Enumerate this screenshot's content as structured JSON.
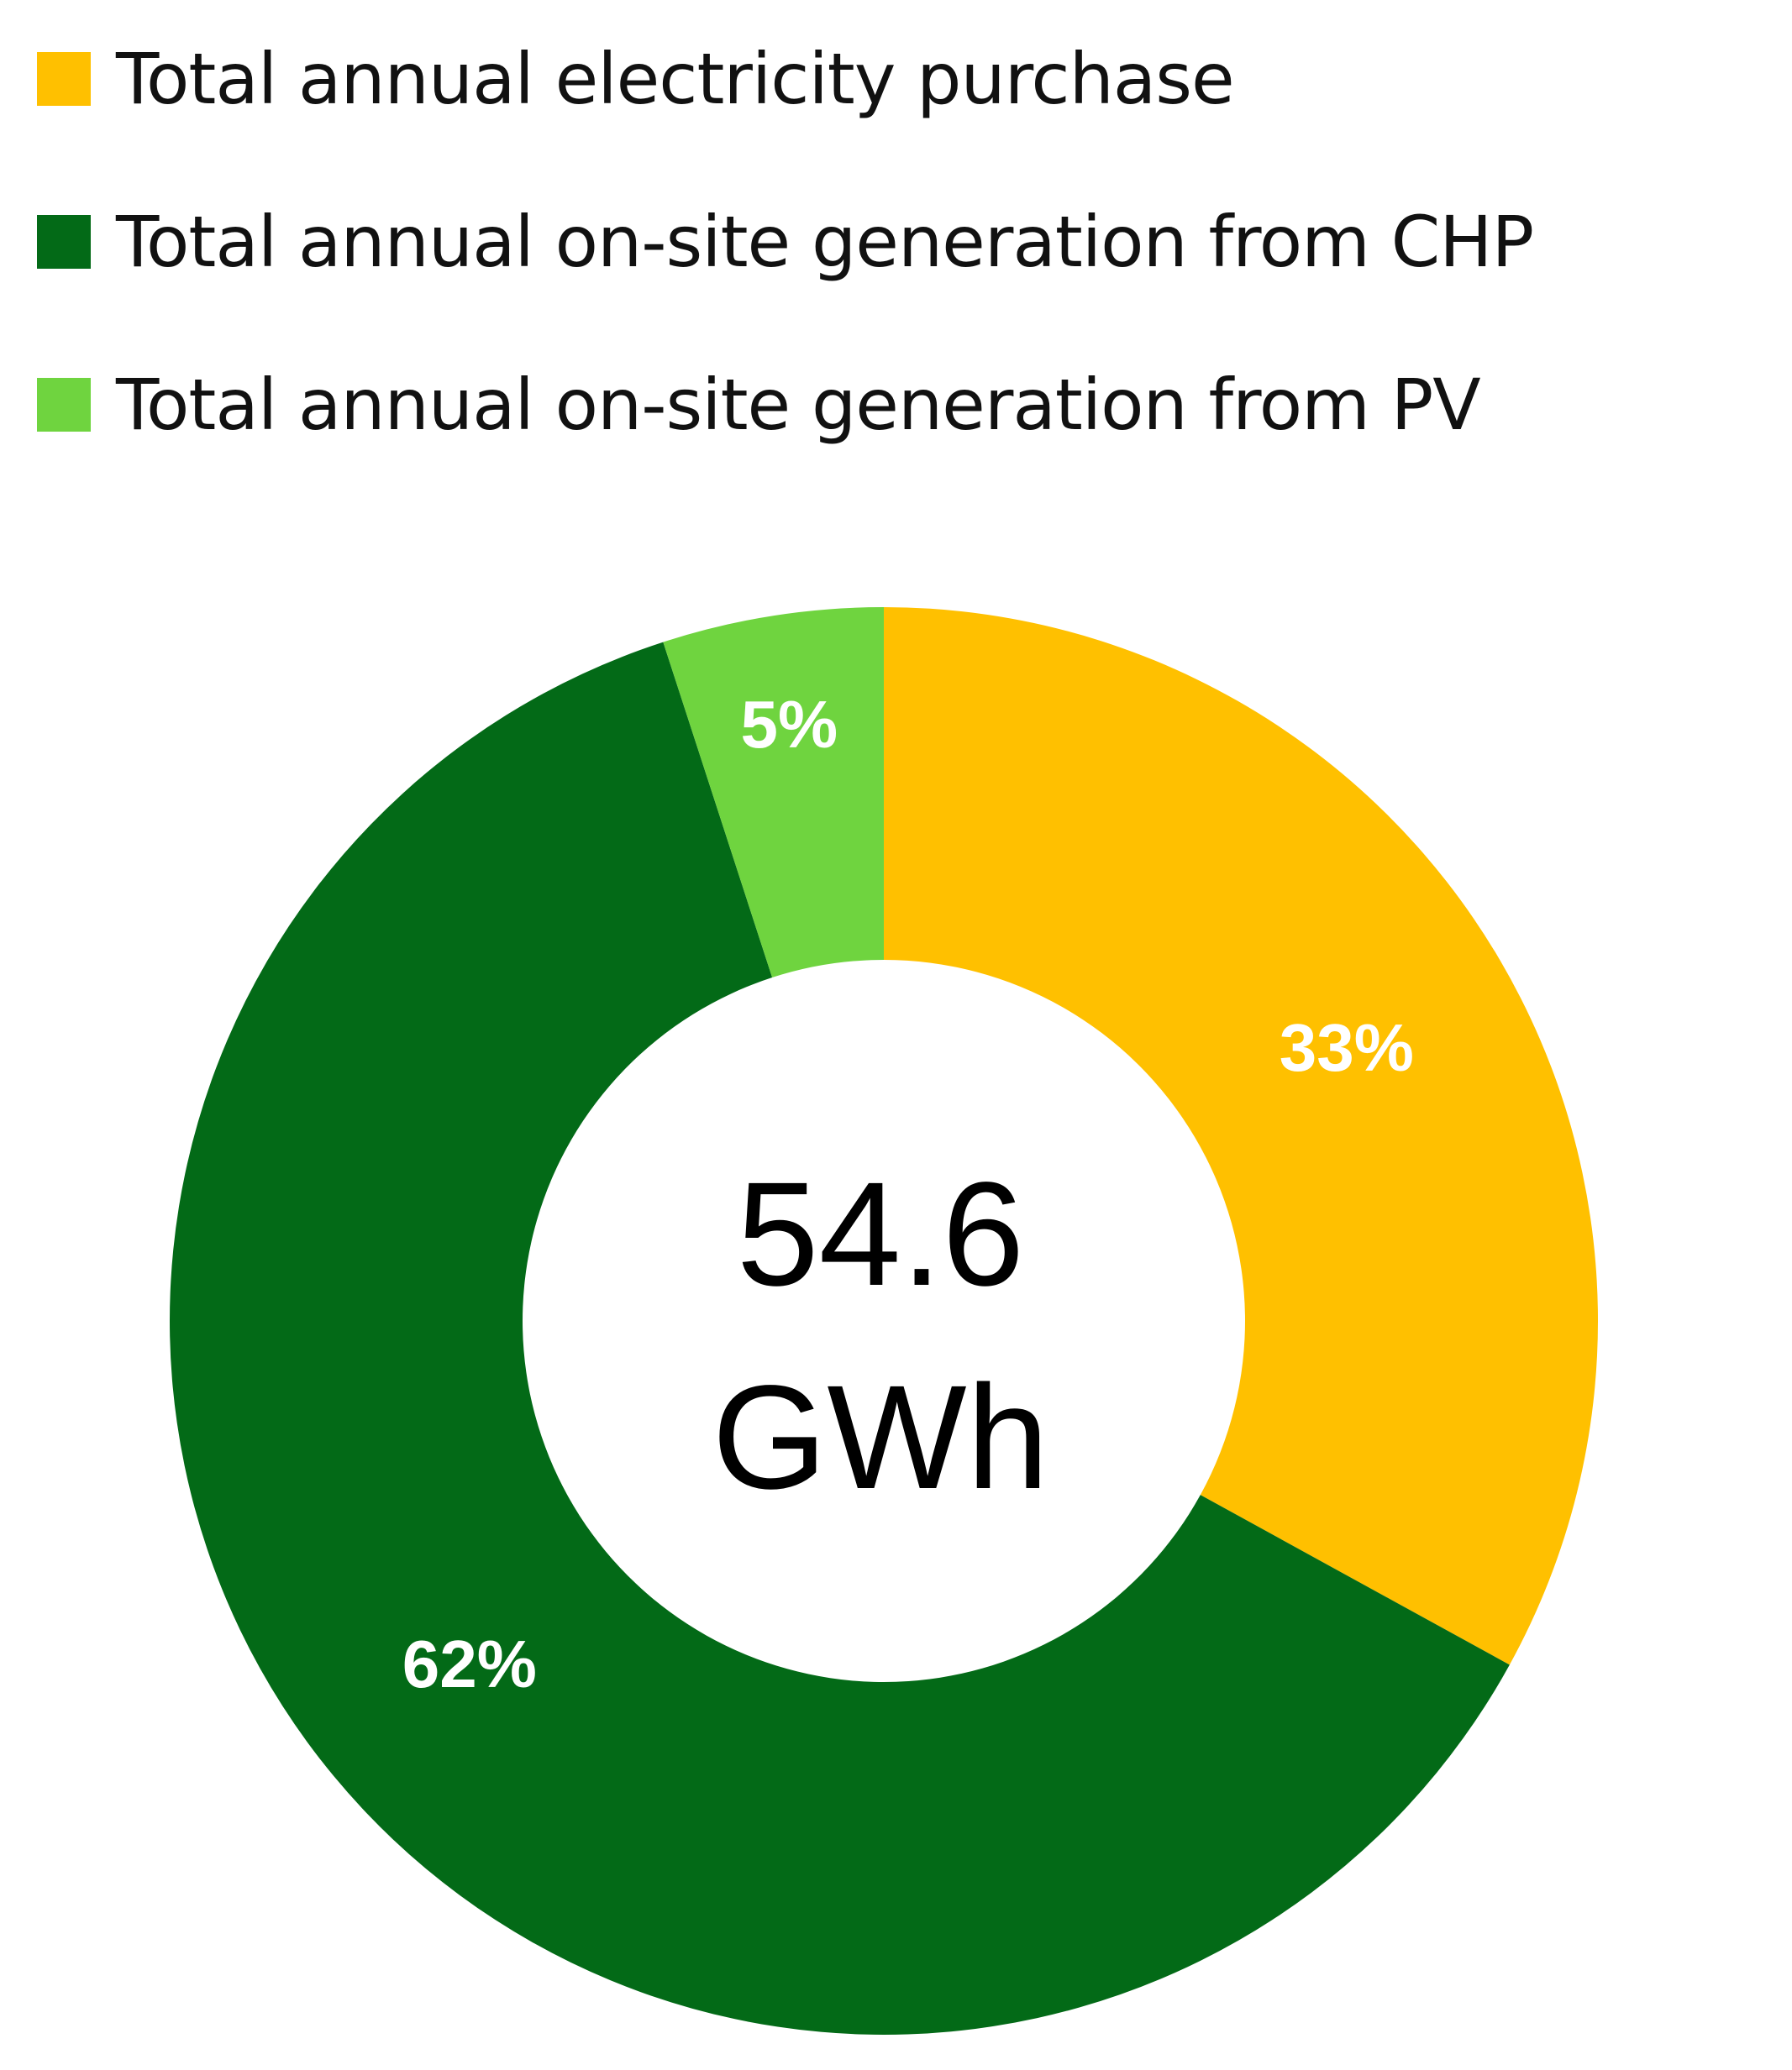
{
  "chart_data": {
    "type": "pie",
    "variant": "donut",
    "series": [
      {
        "name": "Total annual electricity purchase",
        "value": 33,
        "label": "33%",
        "color": "#FFC000"
      },
      {
        "name": "Total annual on-site generation from CHP",
        "value": 62,
        "label": "62%",
        "color": "#036A17"
      },
      {
        "name": "Total annual on-site generation from PV",
        "value": 5,
        "label": "5%",
        "color": "#6FD43F"
      }
    ],
    "center_text": [
      "54.6",
      "GWh"
    ],
    "legend_placement": "top-left",
    "start_direction": "top",
    "direction": "clockwise"
  }
}
